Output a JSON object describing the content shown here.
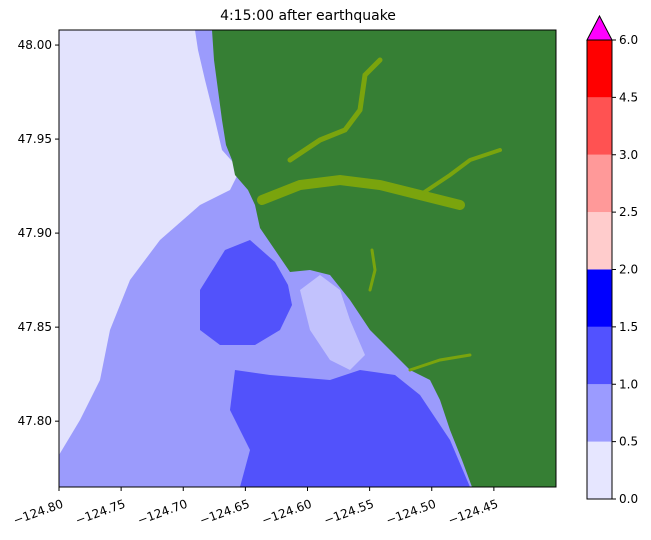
{
  "figure": {
    "title": "4:15:00 after earthquake"
  },
  "map": {
    "x_ticks": [
      "−124.80",
      "−124.75",
      "−124.70",
      "−124.65",
      "−124.60",
      "−124.55",
      "−124.50",
      "−124.45"
    ],
    "x_tick_values": [
      -124.8,
      -124.75,
      -124.7,
      -124.65,
      -124.6,
      -124.55,
      -124.5,
      -124.45
    ],
    "y_ticks": [
      "48.00",
      "47.95",
      "47.90",
      "47.85",
      "47.80"
    ],
    "y_tick_values": [
      48.0,
      47.95,
      47.9,
      47.85,
      47.8
    ],
    "xlim": [
      -124.8,
      -124.4
    ],
    "ylim": [
      47.765,
      48.008
    ],
    "colors": {
      "land": "#367f34",
      "river": "#7aa40d",
      "shallow": "#e3e3fd",
      "level1": "#9b9bfc",
      "level2": "#5252fb",
      "level3": "#0202fb"
    }
  },
  "colorbar": {
    "labels": [
      "0.0",
      "0.5",
      "1.0",
      "1.5",
      "2.0",
      "2.5",
      "3.0",
      "4.5",
      "6.0"
    ],
    "levels": [
      0.0,
      0.5,
      1.0,
      1.5,
      2.0,
      2.5,
      3.0,
      4.5,
      6.0
    ],
    "colors": [
      "#e6e6ff",
      "#9b9bff",
      "#5252ff",
      "#0000ff",
      "#ffcccc",
      "#ff9999",
      "#ff5252",
      "#ff0000"
    ],
    "extend_color": "#ff00ff"
  }
}
